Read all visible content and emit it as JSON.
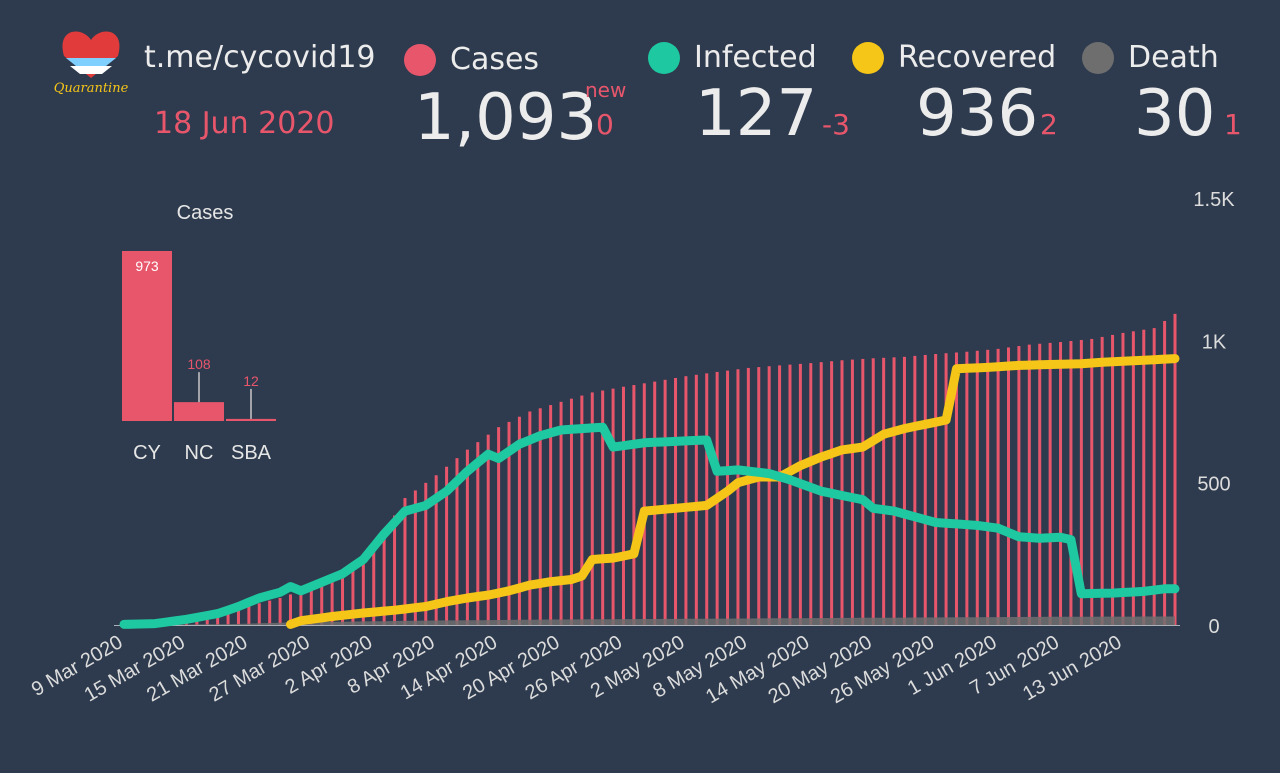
{
  "header": {
    "channel": "t.me/cycovid19",
    "date": "18 Jun 2020",
    "logo_text": "Quarantine"
  },
  "stats": {
    "cases": {
      "label": "Cases",
      "value": "1,093",
      "new_label": "new",
      "delta": "0",
      "color": "#e8566c"
    },
    "infected": {
      "label": "Infected",
      "value": "127",
      "delta": "-3",
      "color": "#1ec8a0"
    },
    "recovered": {
      "label": "Recovered",
      "value": "936",
      "delta": "2",
      "color": "#f5c518"
    },
    "death": {
      "label": "Death",
      "value": "30",
      "delta": "1",
      "color": "#6e6e6e"
    }
  },
  "chart_data": [
    {
      "type": "bar",
      "title": "Cases",
      "categories": [
        "CY",
        "NC",
        "SBA"
      ],
      "values": [
        973,
        108,
        12
      ],
      "ylim": [
        0,
        973
      ],
      "color": "#e8566c"
    },
    {
      "type": "line",
      "title": "",
      "x_start": "9 Mar 2020",
      "x_tick_labels": [
        "9 Mar 2020",
        "15 Mar 2020",
        "21 Mar 2020",
        "27 Mar 2020",
        "2 Apr 2020",
        "8 Apr 2020",
        "14 Apr 2020",
        "20 Apr 2020",
        "26 Apr 2020",
        "2 May 2020",
        "8 May 2020",
        "14 May 2020",
        "20 May 2020",
        "26 May 2020",
        "1 Jun 2020",
        "7 Jun 2020",
        "13 Jun 2020"
      ],
      "y_tick_labels": [
        "0",
        "500",
        "1K",
        "1.5K"
      ],
      "ylim": [
        0,
        1500
      ],
      "days": 102,
      "series": [
        {
          "name": "Cases",
          "style": "bars",
          "color": "#e8566c",
          "keypoints": [
            [
              0,
              2
            ],
            [
              3,
              6
            ],
            [
              6,
              27
            ],
            [
              9,
              46
            ],
            [
              12,
              67
            ],
            [
              15,
              95
            ],
            [
              18,
              132
            ],
            [
              21,
              179
            ],
            [
              24,
              262
            ],
            [
              27,
              446
            ],
            [
              30,
              526
            ],
            [
              33,
              616
            ],
            [
              36,
              695
            ],
            [
              39,
              750
            ],
            [
              42,
              784
            ],
            [
              45,
              817
            ],
            [
              48,
              837
            ],
            [
              51,
              855
            ],
            [
              54,
              874
            ],
            [
              57,
              889
            ],
            [
              60,
              903
            ],
            [
              63,
              912
            ],
            [
              66,
              920
            ],
            [
              69,
              930
            ],
            [
              72,
              937
            ],
            [
              75,
              942
            ],
            [
              78,
              952
            ],
            [
              81,
              960
            ],
            [
              84,
              970
            ],
            [
              87,
              985
            ],
            [
              90,
              994
            ],
            [
              93,
              1005
            ],
            [
              96,
              1026
            ],
            [
              99,
              1043
            ],
            [
              101,
              1093
            ]
          ]
        },
        {
          "name": "Infected",
          "style": "line",
          "color": "#1ec8a0",
          "keypoints": [
            [
              0,
              2
            ],
            [
              3,
              5
            ],
            [
              6,
              20
            ],
            [
              9,
              40
            ],
            [
              11,
              65
            ],
            [
              13,
              95
            ],
            [
              15,
              115
            ],
            [
              16,
              135
            ],
            [
              17,
              120
            ],
            [
              19,
              150
            ],
            [
              21,
              180
            ],
            [
              23,
              230
            ],
            [
              25,
              320
            ],
            [
              27,
              400
            ],
            [
              29,
              420
            ],
            [
              31,
              470
            ],
            [
              33,
              540
            ],
            [
              35,
              600
            ],
            [
              36,
              585
            ],
            [
              38,
              635
            ],
            [
              40,
              665
            ],
            [
              42,
              685
            ],
            [
              44,
              690
            ],
            [
              46,
              695
            ],
            [
              47,
              625
            ],
            [
              50,
              640
            ],
            [
              53,
              645
            ],
            [
              56,
              650
            ],
            [
              57,
              540
            ],
            [
              59,
              545
            ],
            [
              62,
              532
            ],
            [
              64,
              510
            ],
            [
              67,
              470
            ],
            [
              69,
              455
            ],
            [
              71,
              440
            ],
            [
              72,
              410
            ],
            [
              74,
              400
            ],
            [
              76,
              380
            ],
            [
              78,
              360
            ],
            [
              80,
              355
            ],
            [
              82,
              350
            ],
            [
              84,
              340
            ],
            [
              86,
              310
            ],
            [
              88,
              305
            ],
            [
              90,
              308
            ],
            [
              91,
              300
            ],
            [
              92,
              110
            ],
            [
              95,
              112
            ],
            [
              98,
              118
            ],
            [
              100,
              127
            ],
            [
              101,
              127
            ]
          ]
        },
        {
          "name": "Recovered",
          "style": "line",
          "color": "#f5c518",
          "keypoints": [
            [
              16,
              2
            ],
            [
              17,
              15
            ],
            [
              20,
              30
            ],
            [
              23,
              42
            ],
            [
              26,
              52
            ],
            [
              29,
              65
            ],
            [
              31,
              82
            ],
            [
              33,
              95
            ],
            [
              35,
              105
            ],
            [
              37,
              120
            ],
            [
              39,
              140
            ],
            [
              41,
              152
            ],
            [
              43,
              160
            ],
            [
              44,
              172
            ],
            [
              45,
              230
            ],
            [
              47,
              235
            ],
            [
              49,
              250
            ],
            [
              50,
              400
            ],
            [
              53,
              410
            ],
            [
              56,
              420
            ],
            [
              57,
              445
            ],
            [
              58,
              470
            ],
            [
              59,
              500
            ],
            [
              61,
              520
            ],
            [
              63,
              520
            ],
            [
              65,
              560
            ],
            [
              67,
              590
            ],
            [
              69,
              615
            ],
            [
              71,
              625
            ],
            [
              73,
              670
            ],
            [
              75,
              690
            ],
            [
              77,
              705
            ],
            [
              79,
              720
            ],
            [
              80,
              900
            ],
            [
              83,
              905
            ],
            [
              86,
              912
            ],
            [
              89,
              915
            ],
            [
              92,
              918
            ],
            [
              95,
              925
            ],
            [
              98,
              930
            ],
            [
              101,
              936
            ]
          ]
        },
        {
          "name": "Death",
          "style": "area",
          "color": "#6e6e6e",
          "keypoints": [
            [
              0,
              0
            ],
            [
              10,
              3
            ],
            [
              16,
              9
            ],
            [
              22,
              12
            ],
            [
              28,
              15
            ],
            [
              34,
              17
            ],
            [
              40,
              19
            ],
            [
              50,
              21
            ],
            [
              60,
              23
            ],
            [
              70,
              25
            ],
            [
              80,
              27
            ],
            [
              90,
              29
            ],
            [
              101,
              30
            ]
          ]
        }
      ]
    }
  ]
}
